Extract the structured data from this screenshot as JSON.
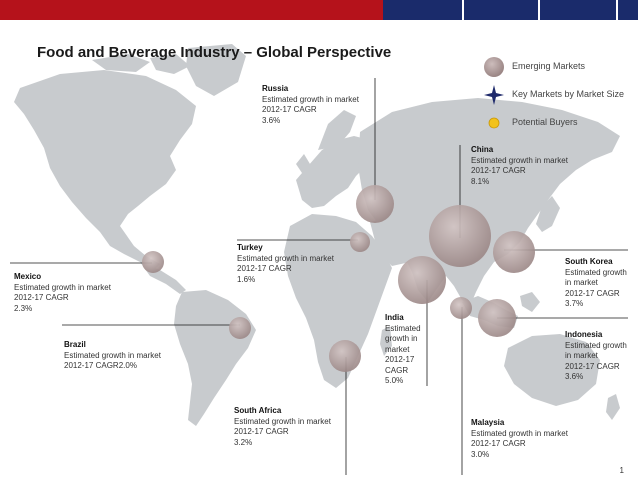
{
  "title": "Food and Beverage Industry – Global Perspective",
  "legend": [
    {
      "label": "Emerging Markets",
      "icon": "emerging-market-bubble-icon",
      "color": "#a89594"
    },
    {
      "label": "Key Markets by Market Size",
      "icon": "four-point-star-icon",
      "color": "#1f2a6b"
    },
    {
      "label": "Potential Buyers",
      "icon": "yellow-dot-icon",
      "color": "#f2c21b"
    }
  ],
  "chart_data": {
    "type": "scatter",
    "series": [
      {
        "values": [
          {
            "country": "Russia",
            "label": "Estimated growth in market",
            "period": "2012-17 CAGR",
            "value": "3.6%"
          },
          {
            "country": "China",
            "label": "Estimated growth in market",
            "period": "2012-17 CAGR",
            "value": "8.1%"
          },
          {
            "country": "Turkey",
            "label": "Estimated growth in market",
            "period": "2012-17 CAGR",
            "value": "1.6%"
          },
          {
            "country": "South Korea",
            "label": "Estimated growth in market",
            "period": "2012-17 CAGR",
            "value": "3.7%"
          },
          {
            "country": "Mexico",
            "label": "Estimated growth in market",
            "period": "2012-17 CAGR",
            "value": "2.3%"
          },
          {
            "country": "India",
            "label": "Estimated growth in market",
            "period": "2012-17 CAGR",
            "value": "5.0%"
          },
          {
            "country": "Indonesia",
            "label": "Estimated growth in market",
            "period": "2012-17 CAGR",
            "value": "3.6%"
          },
          {
            "country": "Brazil",
            "label": "Estimated growth in market",
            "period": "2012-17 CAGR2.0%",
            "value": ""
          },
          {
            "country": "South Africa",
            "label": "Estimated growth in market",
            "period": "2012-17 CAGR",
            "value": "3.2%"
          },
          {
            "country": "Malaysia",
            "label": "Estimated growth in market",
            "period": "2012-17 CAGR",
            "value": "3.0%"
          }
        ]
      }
    ]
  },
  "page_number": "1",
  "colors": {
    "bubble": "#a89594",
    "land": "#c8cbce",
    "line": "#1a1a1a",
    "red_bar": "#b5121b",
    "navy_bar": "#1a2b6b"
  }
}
